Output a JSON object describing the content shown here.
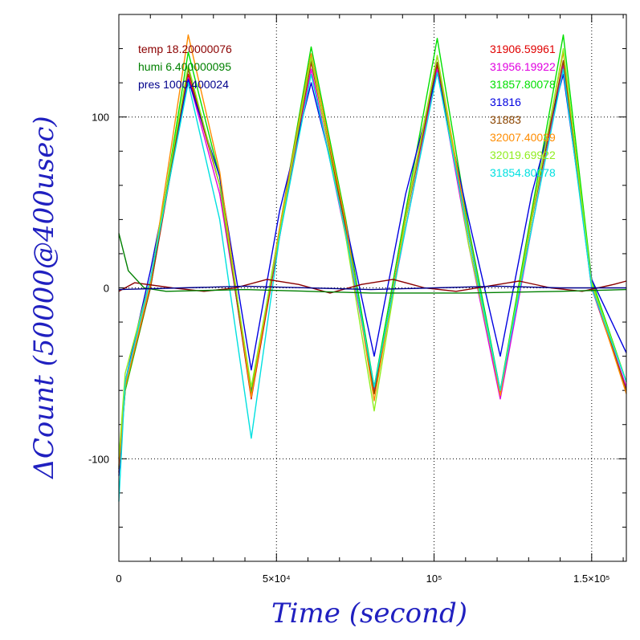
{
  "chart_data": {
    "type": "line",
    "xlabel": "Time (second)",
    "ylabel": "ΔCount (50000@400usec)",
    "xlim": [
      0,
      161000
    ],
    "ylim": [
      -160,
      160
    ],
    "grid": true,
    "x_ticks": [
      {
        "value": 0,
        "label": "0"
      },
      {
        "value": 50000,
        "label": "5×10⁴"
      },
      {
        "value": 100000,
        "label": "10⁵"
      },
      {
        "value": 150000,
        "label": "1.5×10⁵"
      }
    ],
    "y_ticks": [
      {
        "value": -100,
        "label": "-100"
      },
      {
        "value": 0,
        "label": "0"
      },
      {
        "value": 100,
        "label": "100"
      }
    ],
    "legend_left": [
      {
        "text": "temp 18.20000076",
        "color": "#8b0000"
      },
      {
        "text": "humi 6.400000095",
        "color": "#008000"
      },
      {
        "text": "pres 1000.400024",
        "color": "#00008b"
      }
    ],
    "legend_right": [
      {
        "text": "31906.59961",
        "color": "#e00000"
      },
      {
        "text": "31956.19922",
        "color": "#e000e0"
      },
      {
        "text": "31857.80078",
        "color": "#00e000"
      },
      {
        "text": "31816",
        "color": "#0000e0"
      },
      {
        "text": "31883",
        "color": "#8b4500"
      },
      {
        "text": "32007.40039",
        "color": "#ff8c00"
      },
      {
        "text": "32019.69922",
        "color": "#90ee20"
      },
      {
        "text": "31854.80078",
        "color": "#00e0e0"
      }
    ],
    "series": [
      {
        "color": "#e00000",
        "x": [
          0,
          2000,
          10000,
          22000,
          32000,
          42000,
          51000,
          61000,
          72000,
          81000,
          91000,
          101000,
          111000,
          121000,
          131000,
          141000,
          150000,
          161000
        ],
        "y": [
          -108,
          -60,
          0,
          125,
          60,
          -65,
          30,
          132,
          35,
          -62,
          40,
          130,
          30,
          -62,
          40,
          132,
          0,
          -60
        ]
      },
      {
        "color": "#e000e0",
        "x": [
          0,
          2000,
          10000,
          22000,
          32000,
          42000,
          51000,
          61000,
          72000,
          81000,
          91000,
          101000,
          111000,
          121000,
          131000,
          141000,
          150000,
          161000
        ],
        "y": [
          -100,
          -55,
          5,
          123,
          55,
          -60,
          30,
          128,
          30,
          -60,
          35,
          128,
          25,
          -65,
          35,
          130,
          0,
          -58
        ]
      },
      {
        "color": "#00e000",
        "x": [
          0,
          2000,
          10000,
          22000,
          32000,
          42000,
          51000,
          61000,
          72000,
          81000,
          91000,
          101000,
          111000,
          121000,
          131000,
          141000,
          150000,
          161000
        ],
        "y": [
          -105,
          -60,
          0,
          138,
          65,
          -62,
          35,
          141,
          40,
          -58,
          45,
          146,
          35,
          -60,
          45,
          148,
          5,
          -55
        ]
      },
      {
        "color": "#0000e0",
        "x": [
          0,
          2000,
          10000,
          22000,
          32000,
          42000,
          51000,
          61000,
          72000,
          81000,
          91000,
          101000,
          111000,
          121000,
          131000,
          141000,
          150000,
          161000
        ],
        "y": [
          -110,
          -55,
          10,
          122,
          65,
          -48,
          45,
          120,
          38,
          -40,
          55,
          126,
          40,
          -40,
          55,
          125,
          5,
          -38
        ]
      },
      {
        "color": "#8b4500",
        "x": [
          0,
          2000,
          10000,
          22000,
          32000,
          42000,
          51000,
          61000,
          72000,
          81000,
          91000,
          101000,
          111000,
          121000,
          131000,
          141000,
          150000,
          161000
        ],
        "y": [
          -106,
          -58,
          0,
          128,
          60,
          -64,
          32,
          133,
          35,
          -62,
          40,
          132,
          30,
          -62,
          40,
          133,
          2,
          -60
        ]
      },
      {
        "color": "#ff8c00",
        "x": [
          0,
          2000,
          10000,
          22000,
          32000,
          42000,
          51000,
          61000,
          72000,
          81000,
          91000,
          101000,
          111000,
          121000,
          131000,
          141000,
          150000,
          161000
        ],
        "y": [
          -104,
          -58,
          2,
          148,
          68,
          -64,
          35,
          137,
          38,
          -66,
          42,
          136,
          32,
          -63,
          42,
          138,
          2,
          -62
        ]
      },
      {
        "color": "#90ee20",
        "x": [
          0,
          2000,
          10000,
          22000,
          32000,
          42000,
          51000,
          61000,
          72000,
          81000,
          91000,
          101000,
          111000,
          121000,
          131000,
          141000,
          150000,
          161000
        ],
        "y": [
          -100,
          -50,
          5,
          130,
          60,
          -58,
          32,
          135,
          30,
          -72,
          40,
          136,
          25,
          -60,
          40,
          140,
          3,
          -55
        ]
      },
      {
        "color": "#00e0e0",
        "x": [
          0,
          2000,
          10000,
          22000,
          32000,
          42000,
          51000,
          61000,
          72000,
          81000,
          91000,
          101000,
          111000,
          121000,
          131000,
          141000,
          150000,
          161000
        ],
        "y": [
          -125,
          -55,
          5,
          120,
          40,
          -88,
          30,
          125,
          32,
          -58,
          35,
          126,
          30,
          -60,
          35,
          128,
          0,
          -55
        ]
      },
      {
        "color": "#8b0000",
        "x": [
          0,
          5000,
          17000,
          27000,
          37000,
          47000,
          57000,
          67000,
          77000,
          87000,
          97000,
          107000,
          117000,
          127000,
          137000,
          147000,
          157000,
          161000
        ],
        "y": [
          -2,
          3,
          0,
          -2,
          0,
          5,
          2,
          -3,
          2,
          5,
          0,
          -2,
          1,
          4,
          0,
          -2,
          2,
          4
        ]
      },
      {
        "color": "#008000",
        "x": [
          0,
          3000,
          8000,
          15000,
          40000,
          80000,
          110000,
          140000,
          161000
        ],
        "y": [
          32,
          10,
          0,
          -2,
          -1,
          -3,
          -3,
          -2,
          -1
        ]
      },
      {
        "color": "#00008b",
        "x": [
          0,
          20000,
          40000,
          60000,
          80000,
          100000,
          120000,
          140000,
          161000
        ],
        "y": [
          -1,
          0,
          1,
          0,
          -1,
          0,
          1,
          0,
          0
        ]
      }
    ]
  }
}
